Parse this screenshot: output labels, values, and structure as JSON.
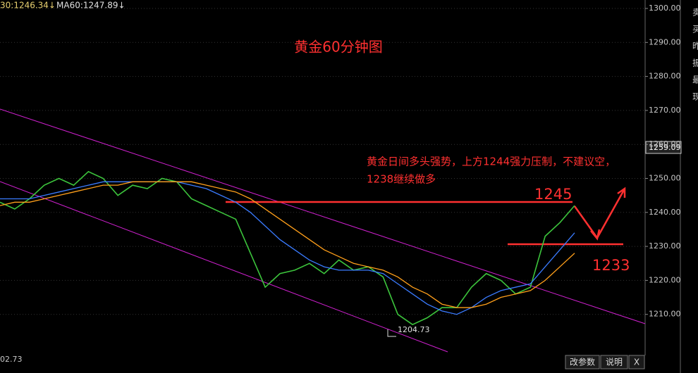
{
  "chart_data": {
    "type": "line",
    "title": "黄金60分钟图",
    "indicator_labels": [
      "30:1246.34↓",
      "MA60:1247.89↓"
    ],
    "annotation": [
      "黄金日间多头强势，上方1244强力压制，不建议空，",
      "1238继续做多"
    ],
    "level_labels": [
      "1245",
      "1233"
    ],
    "low_label": "1204.73",
    "last_price_label": "1259.09",
    "bottom_label": "02.73",
    "buttons": [
      "改参数",
      "说明",
      "X"
    ],
    "side_panel": [
      "卖",
      "买",
      "昨",
      "振",
      "最",
      "现"
    ],
    "ylim": [
      1200,
      1300
    ],
    "yticks": [
      {
        "value": 1210,
        "label": "1210.00"
      },
      {
        "value": 1220,
        "label": "1220.00"
      },
      {
        "value": 1230,
        "label": "1230.00"
      },
      {
        "value": 1240,
        "label": "1240.00"
      },
      {
        "value": 1250,
        "label": "1250.00"
      },
      {
        "value": 1260,
        "label": "1260.00"
      },
      {
        "value": 1270,
        "label": "1270.00"
      },
      {
        "value": 1280,
        "label": "1280.00"
      },
      {
        "value": 1290,
        "label": "1290.00"
      },
      {
        "value": 1300,
        "label": "1300.00"
      }
    ],
    "grid": true,
    "series": [
      {
        "name": "Close",
        "color": "#3cc43c",
        "values": [
          1243,
          1241,
          1244,
          1248,
          1250,
          1248,
          1252,
          1250,
          1245,
          1248,
          1247,
          1250,
          1249,
          1244,
          1242,
          1240,
          1238,
          1228,
          1218,
          1222,
          1223,
          1225,
          1222,
          1226,
          1223,
          1224,
          1221,
          1210,
          1207,
          1209,
          1212,
          1212,
          1218,
          1222,
          1220,
          1216,
          1218,
          1233,
          1237,
          1242
        ]
      },
      {
        "name": "MA30",
        "color": "#3a7bff",
        "values": [
          1244,
          1244,
          1244,
          1245,
          1246,
          1247,
          1248,
          1249,
          1249,
          1249,
          1249,
          1249,
          1249,
          1248,
          1247,
          1245,
          1243,
          1240,
          1236,
          1232,
          1229,
          1226,
          1224,
          1223,
          1223,
          1223,
          1222,
          1219,
          1216,
          1213,
          1211,
          1210,
          1212,
          1215,
          1217,
          1218,
          1219,
          1224,
          1229,
          1234
        ]
      },
      {
        "name": "MA60",
        "color": "#ff9f1a",
        "values": [
          1242,
          1243,
          1243,
          1244,
          1245,
          1246,
          1247,
          1248,
          1248,
          1249,
          1249,
          1249,
          1249,
          1249,
          1248,
          1247,
          1246,
          1244,
          1241,
          1238,
          1235,
          1232,
          1229,
          1227,
          1225,
          1224,
          1223,
          1221,
          1218,
          1216,
          1213,
          1212,
          1212,
          1213,
          1215,
          1216,
          1217,
          1220,
          1224,
          1228
        ]
      }
    ]
  }
}
